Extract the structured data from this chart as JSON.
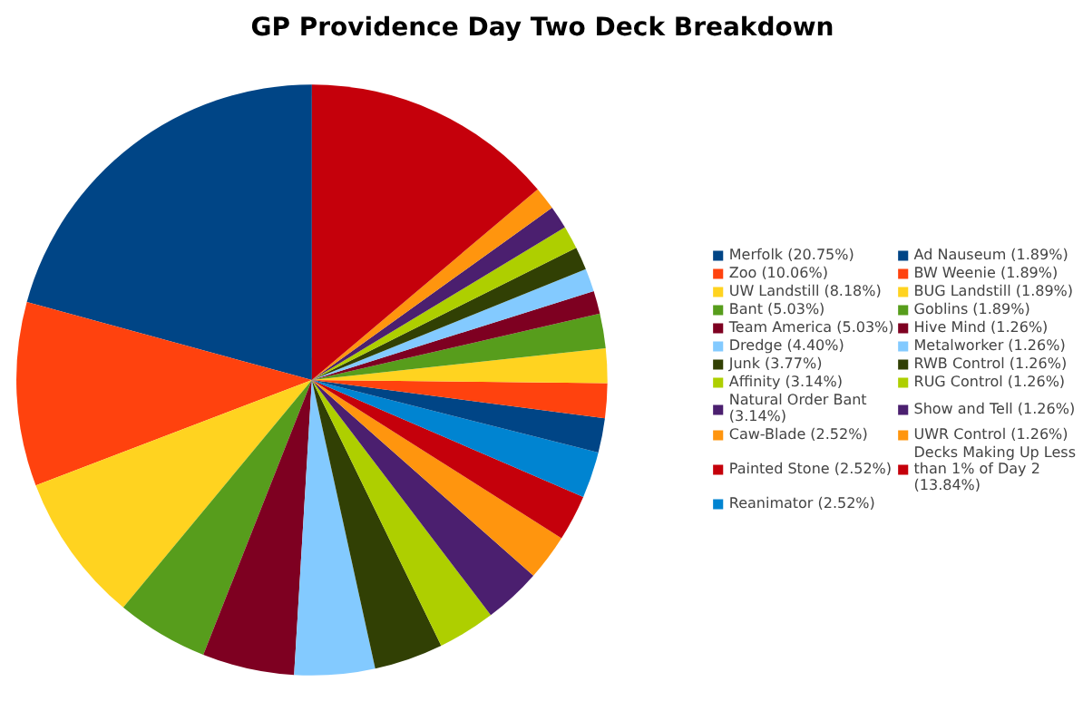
{
  "chart_data": {
    "type": "pie",
    "title": "GP Providence Day Two Deck Breakdown",
    "categories": [
      "Merfolk (20.75%)",
      "Zoo (10.06%)",
      "UW Landstill (8.18%)",
      "Bant (5.03%)",
      "Team America (5.03%)",
      "Dredge (4.40%)",
      "Junk (3.77%)",
      "Affinity (3.14%)",
      "Natural Order Bant (3.14%)",
      "Caw-Blade (2.52%)",
      "Painted Stone (2.52%)",
      "Reanimator (2.52%)",
      "Ad Nauseum (1.89%)",
      "BW Weenie (1.89%)",
      "BUG Landstill (1.89%)",
      "Goblins (1.89%)",
      "Hive Mind (1.26%)",
      "Metalworker (1.26%)",
      "RWB Control (1.26%)",
      "RUG Control (1.26%)",
      "Show and Tell (1.26%)",
      "UWR Control (1.26%)",
      "Decks Making Up Less than 1% of Day 2 (13.84%)"
    ],
    "values": [
      20.75,
      10.06,
      8.18,
      5.03,
      5.03,
      4.4,
      3.77,
      3.14,
      3.14,
      2.52,
      2.52,
      2.52,
      1.89,
      1.89,
      1.89,
      1.89,
      1.26,
      1.26,
      1.26,
      1.26,
      1.26,
      1.26,
      13.84
    ],
    "colors": [
      "#004586",
      "#ff420e",
      "#ffd320",
      "#579d1c",
      "#7e0021",
      "#83caff",
      "#314004",
      "#aecf00",
      "#4b1f6f",
      "#ff950e",
      "#c5000b",
      "#0084d1",
      "#004586",
      "#ff420e",
      "#ffd320",
      "#579d1c",
      "#7e0021",
      "#83caff",
      "#314004",
      "#aecf00",
      "#4b1f6f",
      "#ff950e",
      "#c5000b"
    ],
    "legend": "right"
  }
}
